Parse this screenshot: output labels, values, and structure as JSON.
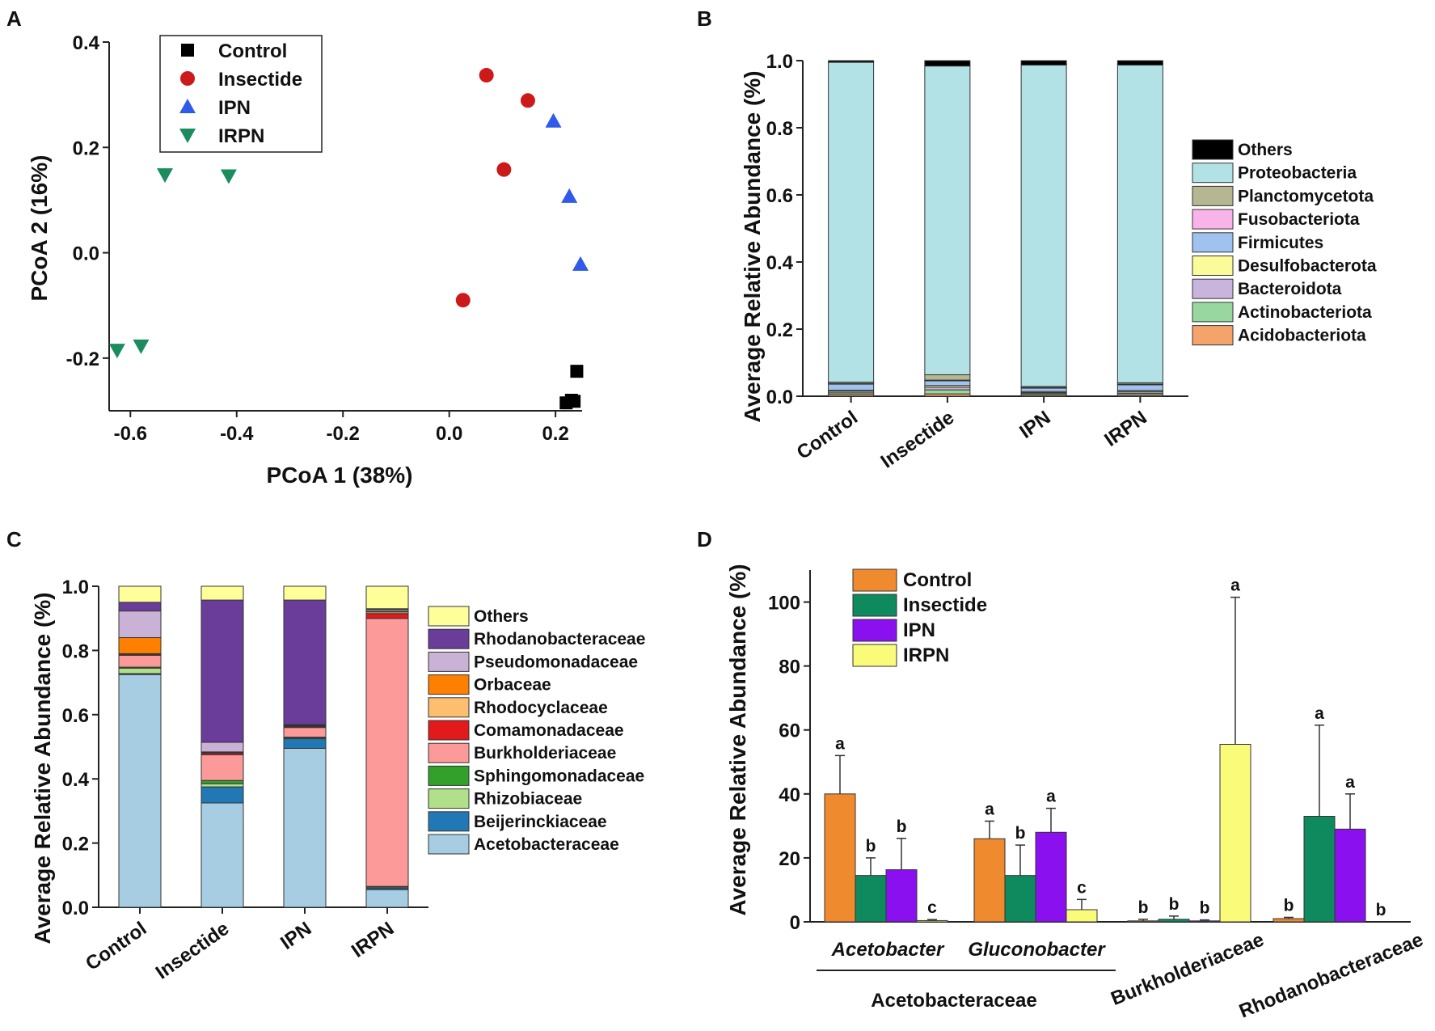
{
  "panel_letters": [
    "A",
    "B",
    "C",
    "D"
  ],
  "chart_data": [
    {
      "panel": "A",
      "type": "scatter",
      "title": "",
      "xlabel": "PCoA 1 (38%)",
      "ylabel": "PCoA 2 (16%)",
      "xlim": [
        -0.64,
        0.25
      ],
      "ylim": [
        -0.3,
        0.4
      ],
      "xticks": [
        -0.6,
        -0.4,
        -0.2,
        0.0,
        0.2
      ],
      "xtick_labels": [
        "-0.6",
        "-0.4",
        "-0.2",
        "0.0",
        "0.2"
      ],
      "yticks": [
        -0.2,
        0.0,
        0.2,
        0.4
      ],
      "ytick_labels": [
        "-0.2",
        "0.0",
        "0.2",
        "0.4"
      ],
      "legend_position": "top-left",
      "series": [
        {
          "name": "Control",
          "marker": "square",
          "color": "#000000",
          "points": [
            [
              0.24,
              -0.225
            ],
            [
              0.22,
              -0.285
            ],
            [
              0.23,
              -0.28
            ],
            [
              0.235,
              -0.282
            ]
          ]
        },
        {
          "name": "Insectide",
          "marker": "circle",
          "color": "#cc1a1a",
          "points": [
            [
              0.07,
              0.337
            ],
            [
              0.148,
              0.289
            ],
            [
              0.103,
              0.158
            ],
            [
              0.026,
              -0.09
            ]
          ]
        },
        {
          "name": "IPN",
          "marker": "triangle-up",
          "color": "#2f5be8",
          "points": [
            [
              0.196,
              0.25
            ],
            [
              0.226,
              0.107
            ],
            [
              0.247,
              -0.022
            ]
          ]
        },
        {
          "name": "IRPN",
          "marker": "triangle-down",
          "color": "#1a8c5e",
          "points": [
            [
              -0.535,
              0.148
            ],
            [
              -0.415,
              0.146
            ],
            [
              -0.625,
              -0.185
            ],
            [
              -0.58,
              -0.177
            ]
          ]
        }
      ]
    },
    {
      "panel": "B",
      "type": "bar",
      "stacked": true,
      "title": "",
      "xlabel": "",
      "ylabel": "Average Relative Abundance (%)",
      "ylim": [
        0,
        1.0
      ],
      "yticks": [
        0.0,
        0.2,
        0.4,
        0.6,
        0.8,
        1.0
      ],
      "ytick_labels": [
        "0.0",
        "0.2",
        "0.4",
        "0.6",
        "0.8",
        "1.0"
      ],
      "categories": [
        "Control",
        "Insectide",
        "IPN",
        "IRPN"
      ],
      "legend_position": "right",
      "series": [
        {
          "name": "Acidobacteriota",
          "color": "#f4a46a",
          "values": [
            0.005,
            0.007,
            0.004,
            0.004
          ]
        },
        {
          "name": "Actinobacteriota",
          "color": "#98d8a0",
          "values": [
            0.005,
            0.012,
            0.004,
            0.005
          ]
        },
        {
          "name": "Bacteroidota",
          "color": "#c8b4dc",
          "values": [
            0.005,
            0.008,
            0.003,
            0.005
          ]
        },
        {
          "name": "Desulfobacterota",
          "color": "#fbfb9a",
          "values": [
            0.003,
            0.005,
            0.003,
            0.003
          ]
        },
        {
          "name": "Firmicutes",
          "color": "#9fc2ee",
          "values": [
            0.018,
            0.014,
            0.01,
            0.017
          ]
        },
        {
          "name": "Fusobacteriota",
          "color": "#f8b4e8",
          "values": [
            0.002,
            0.002,
            0.002,
            0.002
          ]
        },
        {
          "name": "Planctomycetota",
          "color": "#b6b792",
          "values": [
            0.004,
            0.016,
            0.003,
            0.004
          ]
        },
        {
          "name": "Proteobacteria",
          "color": "#b2e2e6",
          "values": [
            0.953,
            0.92,
            0.958,
            0.947
          ]
        },
        {
          "name": "Others",
          "color": "#000000",
          "values": [
            0.005,
            0.016,
            0.013,
            0.013
          ]
        }
      ]
    },
    {
      "panel": "C",
      "type": "bar",
      "stacked": true,
      "title": "",
      "xlabel": "",
      "ylabel": "Average Relative Abundance (%)",
      "ylim": [
        0,
        1.0
      ],
      "yticks": [
        0.0,
        0.2,
        0.4,
        0.6,
        0.8,
        1.0
      ],
      "ytick_labels": [
        "0.0",
        "0.2",
        "0.4",
        "0.6",
        "0.8",
        "1.0"
      ],
      "categories": [
        "Control",
        "Insectide",
        "IPN",
        "IRPN"
      ],
      "legend_position": "right",
      "series": [
        {
          "name": "Acetobacteraceae",
          "color": "#a6cde2",
          "values": [
            0.725,
            0.325,
            0.495,
            0.055
          ]
        },
        {
          "name": "Beijerinckiaceae",
          "color": "#2178b4",
          "values": [
            0.003,
            0.05,
            0.03,
            0.005
          ]
        },
        {
          "name": "Rhizobiaceae",
          "color": "#b2df8a",
          "values": [
            0.017,
            0.01,
            0.003,
            0.003
          ]
        },
        {
          "name": "Sphingomonadaceae",
          "color": "#33a02c",
          "values": [
            0.003,
            0.01,
            0.002,
            0.002
          ]
        },
        {
          "name": "Burkholderiaceae",
          "color": "#fb9a99",
          "values": [
            0.037,
            0.08,
            0.03,
            0.835
          ]
        },
        {
          "name": "Comamonadaceae",
          "color": "#e31a1c",
          "values": [
            0.003,
            0.005,
            0.003,
            0.015
          ]
        },
        {
          "name": "Rhodocyclaceae",
          "color": "#fdbf6f",
          "values": [
            0.002,
            0.002,
            0.002,
            0.005
          ]
        },
        {
          "name": "Orbaceae",
          "color": "#ff7f00",
          "values": [
            0.05,
            0.002,
            0.002,
            0.002
          ]
        },
        {
          "name": "Pseudomonadaceae",
          "color": "#cab2d6",
          "values": [
            0.083,
            0.03,
            0.002,
            0.005
          ]
        },
        {
          "name": "Rhodanobacteraceae",
          "color": "#6a3d9a",
          "values": [
            0.027,
            0.443,
            0.388,
            0.003
          ]
        },
        {
          "name": "Others",
          "color": "#ffff99",
          "values": [
            0.05,
            0.043,
            0.043,
            0.07
          ]
        }
      ]
    },
    {
      "panel": "D",
      "type": "bar",
      "stacked": false,
      "title": "",
      "xlabel": "",
      "ylabel": "Average Relative Abundance (%)",
      "ylim": [
        0,
        110
      ],
      "yticks": [
        0,
        20,
        40,
        60,
        80,
        100
      ],
      "ytick_labels": [
        "0",
        "20",
        "40",
        "60",
        "80",
        "100"
      ],
      "categories": [
        "Acetobacter",
        "Gluconobacter",
        "Burkholderiaceae",
        "Rhodanobacteraceae"
      ],
      "group_label": "Acetobacteraceae",
      "legend_position": "top-left",
      "series": [
        {
          "name": "Control",
          "color": "#f08a2e",
          "values": [
            40,
            26,
            0.3,
            1.0
          ],
          "errors": [
            12,
            5.5,
            0.5,
            0.4
          ],
          "letters": [
            "a",
            "a",
            "b",
            "b"
          ]
        },
        {
          "name": "Insectide",
          "color": "#0e8a5e",
          "values": [
            14.5,
            14.5,
            0.8,
            33
          ],
          "errors": [
            5.5,
            9.5,
            1.0,
            28.5
          ],
          "letters": [
            "b",
            "b",
            "b",
            "a"
          ]
        },
        {
          "name": "IPN",
          "color": "#8a10f0",
          "values": [
            16.3,
            28,
            0.3,
            29
          ],
          "errors": [
            9.8,
            7.5,
            0.3,
            11
          ],
          "letters": [
            "b",
            "a",
            "b",
            "a"
          ]
        },
        {
          "name": "IRPN",
          "color": "#fbfb7a",
          "values": [
            0.4,
            3.8,
            55.5,
            0
          ],
          "errors": [
            0.3,
            3.2,
            46,
            0
          ],
          "letters": [
            "c",
            "c",
            "a",
            "b"
          ]
        }
      ]
    }
  ]
}
